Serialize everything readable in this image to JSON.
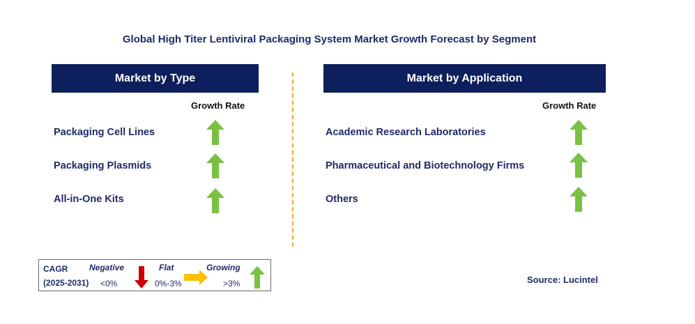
{
  "title": "Global High Titer Lentiviral Packaging System Market Growth Forecast by Segment",
  "type_panel": {
    "header": "Market by Type",
    "growth_label": "Growth Rate",
    "items": [
      {
        "label": "Packaging Cell Lines",
        "trend": "growing"
      },
      {
        "label": "Packaging Plasmids",
        "trend": "growing"
      },
      {
        "label": "All-in-One Kits",
        "trend": "growing"
      }
    ]
  },
  "application_panel": {
    "header": "Market by Application",
    "growth_label": "Growth Rate",
    "items": [
      {
        "label": "Academic Research Laboratories",
        "trend": "growing"
      },
      {
        "label": "Pharmaceutical and Biotechnology Firms",
        "trend": "growing"
      },
      {
        "label": "Others",
        "trend": "growing"
      }
    ]
  },
  "legend": {
    "cagr_label": "CAGR",
    "years": "(2025-2031)",
    "negative": {
      "label": "Negative",
      "range": "<0%",
      "color": "#cc0000"
    },
    "flat": {
      "label": "Flat",
      "range": "0%-3%",
      "color": "#ffc000"
    },
    "growing": {
      "label": "Growing",
      "range": ">3%",
      "color": "#7ac143"
    }
  },
  "source": "Source: Lucintel",
  "colors": {
    "header_bg": "#0d1f5c",
    "text": "#1f2a6b",
    "divider": "#f0a830",
    "arrow_green": "#7ac143"
  }
}
